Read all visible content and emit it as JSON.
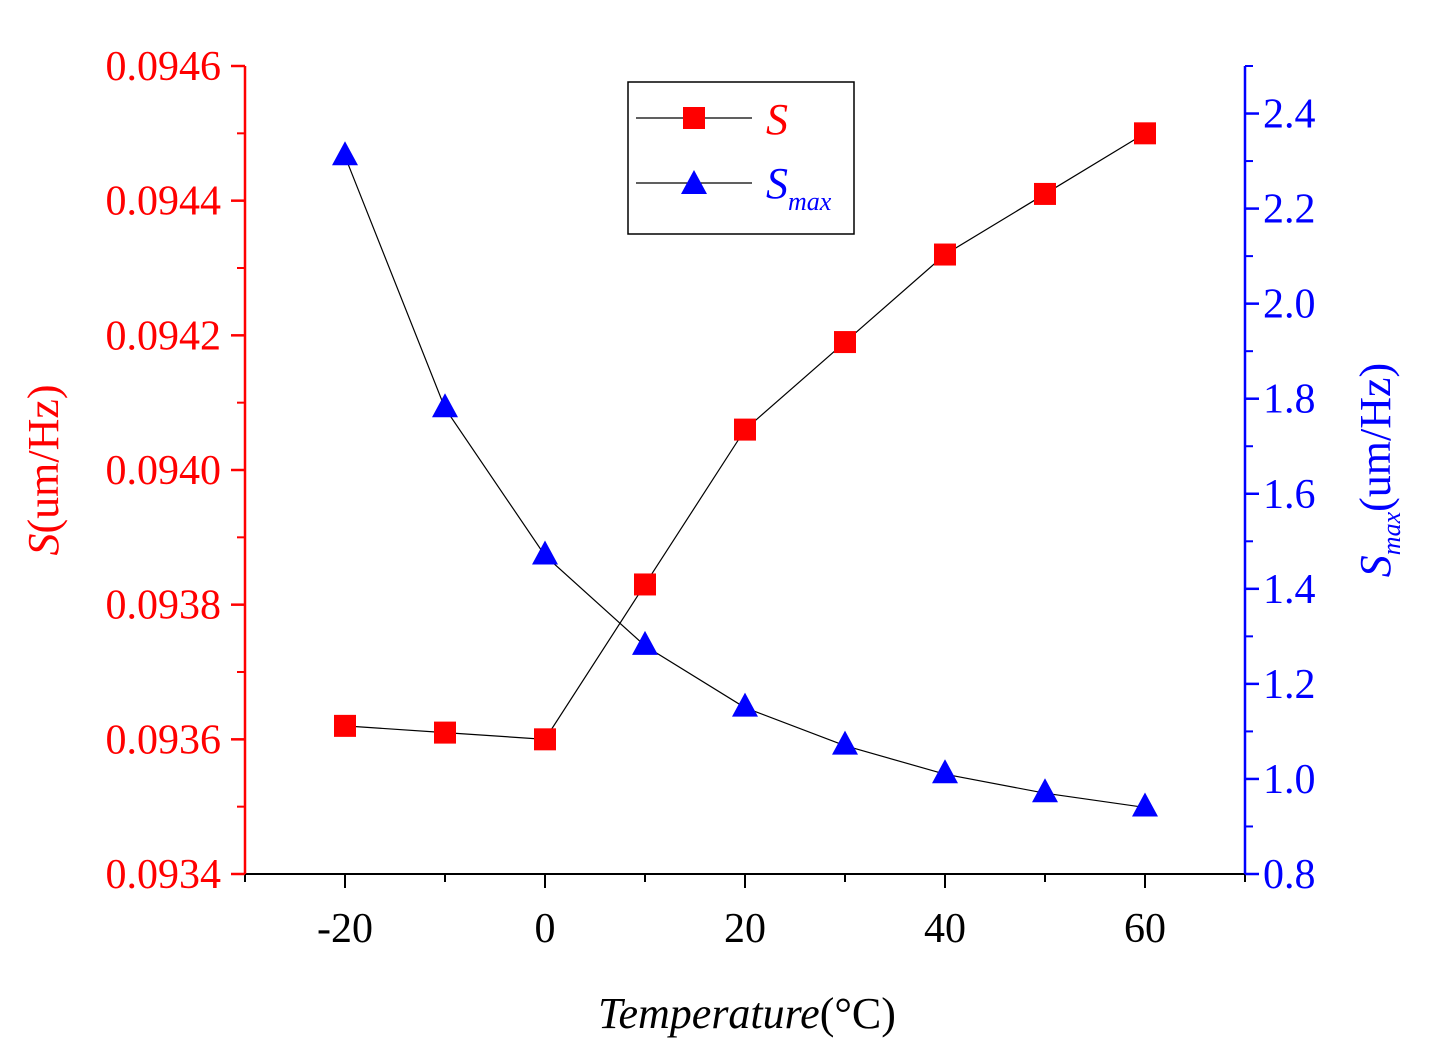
{
  "chart_data": {
    "type": "line",
    "x": [
      -20,
      -10,
      0,
      10,
      20,
      30,
      40,
      50,
      60
    ],
    "xlim": [
      -30,
      70
    ],
    "xticks": [
      -20,
      0,
      20,
      40,
      60
    ],
    "xtick_labels": [
      "-20",
      "0",
      "20",
      "40",
      "60"
    ],
    "xlabel_italic": "Temperature",
    "xlabel_unit": "(°C)",
    "left_axis": {
      "label_symbol": "S",
      "label_unit": "(um/Hz)",
      "color": "#ff0000",
      "ylim": [
        0.0934,
        0.0946
      ],
      "ticks": [
        0.0934,
        0.0936,
        0.0938,
        0.094,
        0.0942,
        0.0944,
        0.0946
      ],
      "tick_labels": [
        "0.0934",
        "0.0936",
        "0.0938",
        "0.0940",
        "0.0942",
        "0.0944",
        "0.0946"
      ]
    },
    "right_axis": {
      "label_symbol": "S",
      "label_subscript": "max",
      "label_unit": "(um/Hz)",
      "color": "#0000ff",
      "ylim": [
        0.8,
        2.5
      ],
      "ticks": [
        0.8,
        1.0,
        1.2,
        1.4,
        1.6,
        1.8,
        2.0,
        2.2,
        2.4
      ],
      "tick_labels": [
        "0.8",
        "1.0",
        "1.2",
        "1.4",
        "1.6",
        "1.8",
        "2.0",
        "2.2",
        "2.4"
      ]
    },
    "series": [
      {
        "name": "S",
        "axis": "left",
        "marker": "square",
        "color": "#ff0000",
        "values": [
          0.09362,
          0.09361,
          0.0936,
          0.09383,
          0.09406,
          0.09419,
          0.09432,
          0.09441,
          0.0945
        ]
      },
      {
        "name": "S",
        "subscript": "max",
        "axis": "right",
        "marker": "triangle",
        "color": "#0000ff",
        "values": [
          2.31,
          1.78,
          1.47,
          1.28,
          1.15,
          1.07,
          1.01,
          0.97,
          0.94
        ]
      }
    ],
    "legend": {
      "position": "top-center",
      "entries": [
        {
          "symbol": "S",
          "subscript": ""
        },
        {
          "symbol": "S",
          "subscript": "max"
        }
      ]
    }
  }
}
